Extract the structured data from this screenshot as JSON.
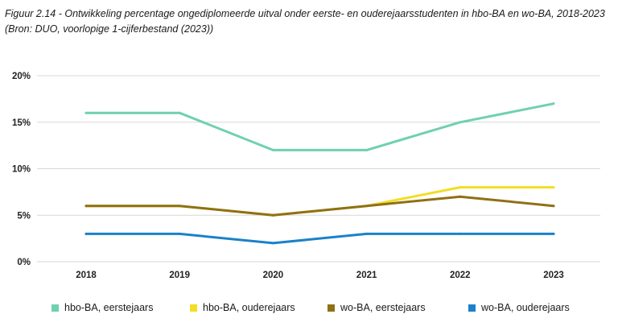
{
  "caption": {
    "line1": "Figuur 2.14 - Ontwikkeling percentage ongediplomeerde uitval onder eerste- en ouderejaarsstudenten in hbo-BA en wo-BA, 2018-2023",
    "line2": "(Bron: DUO, voorlopige 1-cijferbestand (2023))"
  },
  "chart_data": {
    "type": "line",
    "title": "",
    "xlabel": "",
    "ylabel": "",
    "x": [
      "2018",
      "2019",
      "2020",
      "2021",
      "2022",
      "2023"
    ],
    "ylim": [
      0,
      20
    ],
    "yticks": [
      0,
      5,
      10,
      15,
      20
    ],
    "ytick_labels": [
      "0%",
      "5%",
      "10%",
      "15%",
      "20%"
    ],
    "grid": true,
    "legend_position": "bottom",
    "series": [
      {
        "name": "hbo-BA, eerstejaars",
        "color": "#6fd1ad",
        "values": [
          16,
          16,
          12,
          12,
          15,
          17
        ]
      },
      {
        "name": "hbo-BA, ouderejaars",
        "color": "#f2de23",
        "values": [
          6,
          6,
          5,
          6,
          8,
          8
        ]
      },
      {
        "name": "wo-BA, eerstejaars",
        "color": "#8f7015",
        "values": [
          6,
          6,
          5,
          6,
          7,
          6
        ]
      },
      {
        "name": "wo-BA, ouderejaars",
        "color": "#1a82c8",
        "values": [
          3,
          3,
          2,
          3,
          3,
          3
        ]
      }
    ]
  }
}
